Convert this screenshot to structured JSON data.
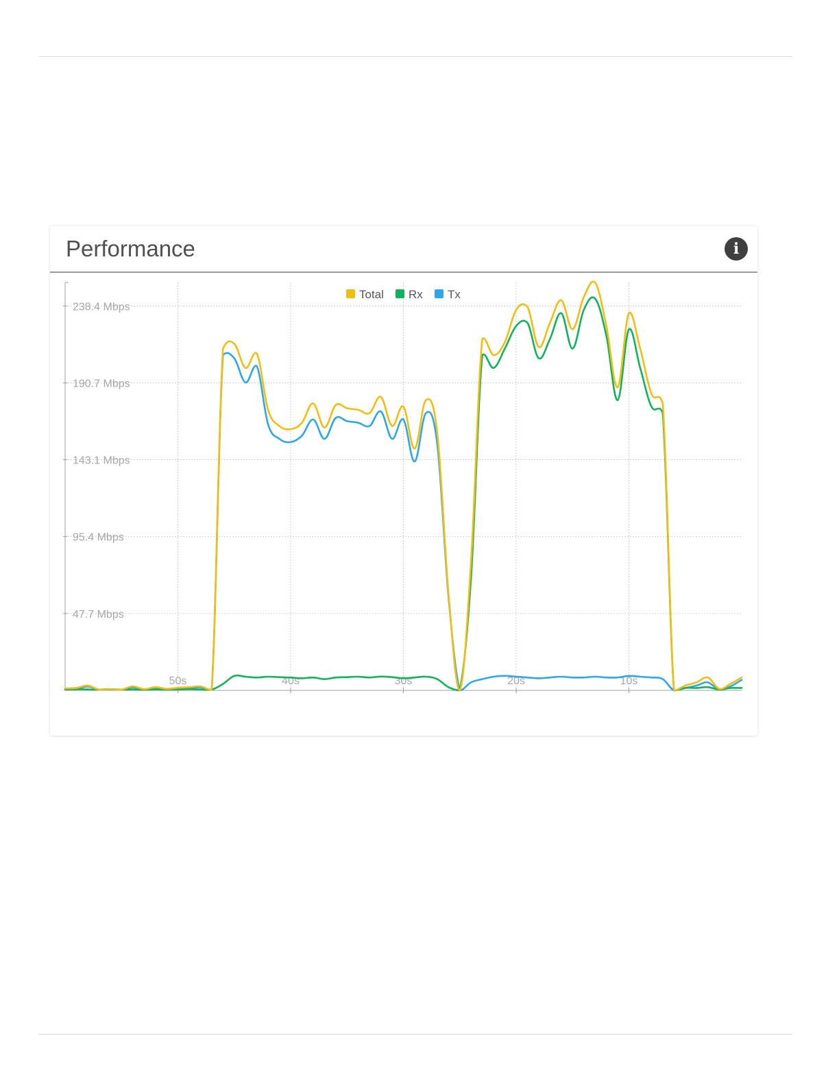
{
  "panel": {
    "title": "Performance",
    "info_icon": "info-circle-icon",
    "info_glyph": "i"
  },
  "chart_data": {
    "type": "line",
    "title": "",
    "xlabel": "",
    "ylabel": "",
    "x_ticks": [
      "50s",
      "40s",
      "30s",
      "20s",
      "10s"
    ],
    "x_tick_values": [
      50,
      40,
      30,
      20,
      10
    ],
    "xlim": [
      60,
      0
    ],
    "y_ticks": [
      "47.7 Mbps",
      "95.4 Mbps",
      "143.1 Mbps",
      "190.7 Mbps",
      "238.4 Mbps"
    ],
    "y_tick_values": [
      47.7,
      95.4,
      143.1,
      190.7,
      238.4
    ],
    "ylim": [
      0,
      253
    ],
    "unit": "Mbps",
    "grid": true,
    "legend_position": "top-center",
    "x": [
      60,
      59,
      58,
      57,
      56,
      55,
      54,
      53,
      52,
      51,
      50,
      49,
      48,
      47,
      46,
      45,
      44,
      43,
      42,
      41,
      40,
      39,
      38,
      37,
      36,
      35,
      34,
      33,
      32,
      31,
      30,
      29,
      28,
      27,
      26,
      25,
      24,
      23,
      22,
      21,
      20,
      19,
      18,
      17,
      16,
      15,
      14,
      13,
      12,
      11,
      10,
      9,
      8,
      7,
      6,
      5,
      4,
      3,
      2,
      1,
      0
    ],
    "series": [
      {
        "name": "Total",
        "color": "#f2bd13",
        "values": [
          1.2,
          1.5,
          3.0,
          0.5,
          0.7,
          0.5,
          2.5,
          0.8,
          2.0,
          1.0,
          1.6,
          2.0,
          2.5,
          0.5,
          212,
          215,
          200,
          209,
          174,
          164,
          162,
          166,
          178,
          163,
          177,
          175,
          174,
          172,
          182,
          164,
          176,
          150,
          180,
          160,
          60,
          0,
          80,
          218,
          208,
          216,
          236,
          238,
          213,
          228,
          242,
          224,
          244,
          253,
          226,
          188,
          234,
          212,
          184,
          178,
          0,
          3,
          5,
          8,
          1,
          4,
          8
        ]
      },
      {
        "name": "Rx",
        "color": "#11b25b",
        "values": [
          0.5,
          0.8,
          0.6,
          0.5,
          0.7,
          0.5,
          0.6,
          0.4,
          0.6,
          0.5,
          0.6,
          0.8,
          0.6,
          0.5,
          4.0,
          9.0,
          8.5,
          8.0,
          8.5,
          8.2,
          8.0,
          7.5,
          8.0,
          7.0,
          8.0,
          8.2,
          8.5,
          8.0,
          8.6,
          8.2,
          7.5,
          8.0,
          8.5,
          7.0,
          2.0,
          0,
          70,
          208,
          200,
          212,
          226,
          228,
          206,
          218,
          234,
          212,
          236,
          243,
          220,
          180,
          224,
          200,
          176,
          172,
          0,
          1.5,
          1.5,
          2.0,
          0.5,
          1.5,
          1.5
        ]
      },
      {
        "name": "Tx",
        "color": "#2ea6e8",
        "values": [
          0.7,
          0.7,
          2.4,
          0.5,
          0.5,
          0.5,
          1.9,
          0.4,
          1.4,
          0.5,
          1.0,
          1.2,
          1.9,
          0.5,
          208,
          206,
          191,
          201,
          165,
          156,
          154,
          158,
          168,
          156,
          169,
          167,
          166,
          164,
          173,
          156,
          168,
          142,
          172,
          153,
          58,
          0,
          5,
          7,
          8.5,
          9.0,
          8.5,
          8.0,
          7.5,
          8.0,
          8.5,
          8.0,
          8.0,
          8.5,
          8.0,
          8.0,
          9.0,
          8.5,
          8.0,
          7.0,
          0,
          1.5,
          3.0,
          5.0,
          0.5,
          2.5,
          6.5
        ]
      }
    ]
  }
}
